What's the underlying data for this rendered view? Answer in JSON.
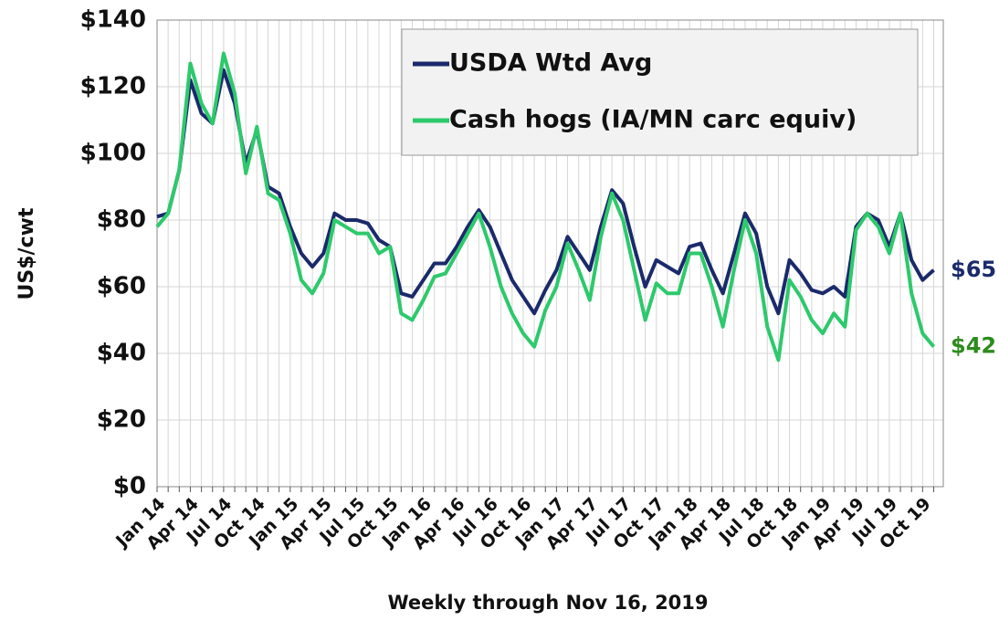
{
  "chart_data": {
    "type": "line",
    "xlabel": "Weekly through Nov 16, 2019",
    "ylabel": "US$/cwt",
    "categories": [
      "Jan 14",
      null,
      null,
      "Apr 14",
      null,
      null,
      "Jul 14",
      null,
      null,
      "Oct 14",
      null,
      null,
      "Jan 15",
      null,
      null,
      "Apr 15",
      null,
      null,
      "Jul 15",
      null,
      null,
      "Oct 15",
      null,
      null,
      "Jan 16",
      null,
      null,
      "Apr 16",
      null,
      null,
      "Jul 16",
      null,
      null,
      "Oct 16",
      null,
      null,
      "Jan 17",
      null,
      null,
      "Apr 17",
      null,
      null,
      "Jul 17",
      null,
      null,
      "Oct 17",
      null,
      null,
      "Jan 18",
      null,
      null,
      "Apr 18",
      null,
      null,
      "Jul 18",
      null,
      null,
      "Oct 18",
      null,
      null,
      "Jan 19",
      null,
      null,
      "Apr 19",
      null,
      null,
      "Jul 19",
      null,
      null,
      "Oct 19",
      null
    ],
    "series": [
      {
        "name": "USDA Wtd Avg",
        "color": "#1b2a6b",
        "values": [
          81,
          82,
          95,
          122,
          112,
          109,
          125,
          115,
          97,
          107,
          90,
          88,
          78,
          70,
          66,
          70,
          82,
          80,
          80,
          79,
          74,
          72,
          58,
          57,
          62,
          67,
          67,
          72,
          78,
          83,
          78,
          70,
          62,
          57,
          52,
          59,
          65,
          75,
          70,
          65,
          78,
          89,
          85,
          72,
          60,
          68,
          66,
          64,
          72,
          73,
          65,
          58,
          70,
          82,
          76,
          60,
          52,
          68,
          64,
          59,
          58,
          60,
          57,
          78,
          82,
          80,
          72,
          82,
          68,
          62,
          65
        ]
      },
      {
        "name": "Cash hogs (IA/MN carc equiv)",
        "color": "#2dc96c",
        "values": [
          78,
          82,
          95,
          127,
          115,
          109,
          130,
          118,
          94,
          108,
          88,
          86,
          76,
          62,
          58,
          64,
          80,
          78,
          76,
          76,
          70,
          72,
          52,
          50,
          56,
          63,
          64,
          70,
          76,
          82,
          72,
          60,
          52,
          46,
          42,
          53,
          60,
          73,
          65,
          56,
          75,
          88,
          80,
          65,
          50,
          61,
          58,
          58,
          70,
          70,
          60,
          48,
          65,
          80,
          70,
          48,
          38,
          62,
          57,
          50,
          46,
          52,
          48,
          77,
          82,
          78,
          70,
          82,
          58,
          46,
          42
        ]
      }
    ],
    "ylim": [
      0,
      140
    ],
    "yticks": [
      {
        "value": 0,
        "label": "$0"
      },
      {
        "value": 20,
        "label": "$20"
      },
      {
        "value": 40,
        "label": "$40"
      },
      {
        "value": 60,
        "label": "$60"
      },
      {
        "value": 80,
        "label": "$80"
      },
      {
        "value": 100,
        "label": "$100"
      },
      {
        "value": 120,
        "label": "$120"
      },
      {
        "value": 140,
        "label": "$140"
      }
    ],
    "grid": true,
    "legend": "upper right",
    "annotations": [
      {
        "text": "$65",
        "color": "#1b2a6b"
      },
      {
        "text": "$42",
        "color": "#2e8b1e"
      }
    ]
  }
}
